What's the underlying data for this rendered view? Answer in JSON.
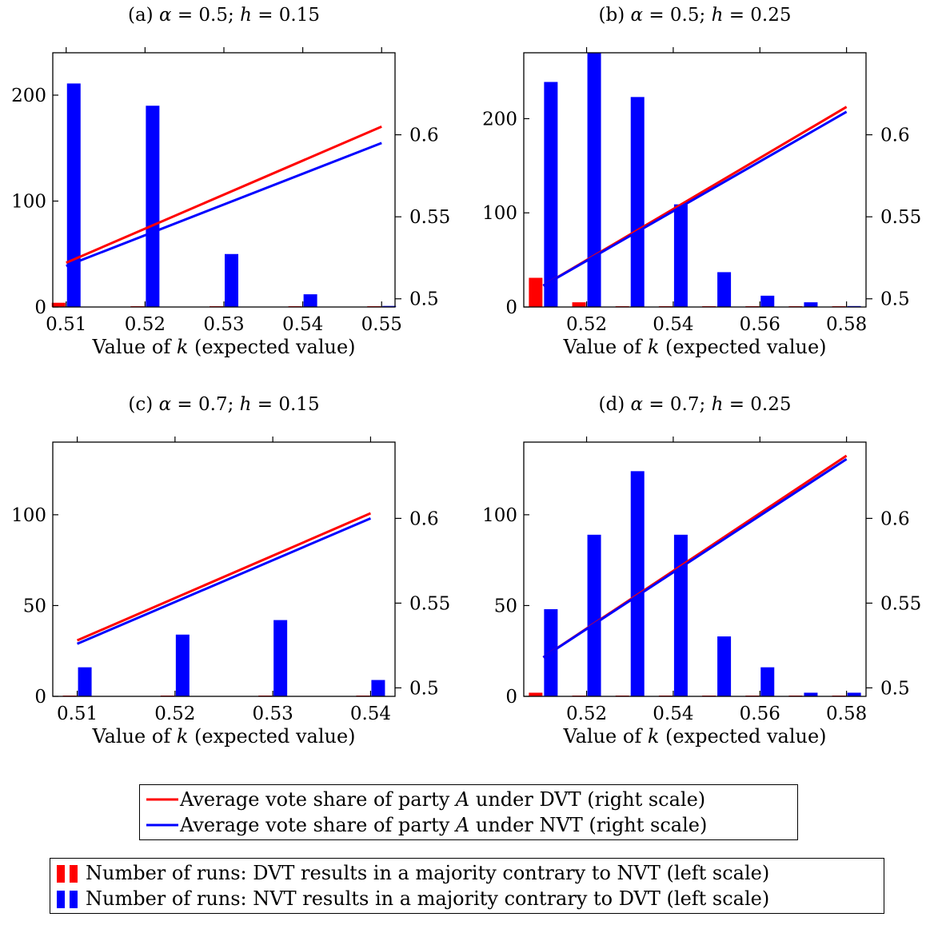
{
  "chart_data": [
    {
      "type": "bar",
      "title": "(a) α = 0.5; h = 0.15",
      "xlabel": "Value of k (expected value)",
      "x": [
        0.51,
        0.52,
        0.53,
        0.54,
        0.55
      ],
      "xticks": [
        "0.51",
        "0.52",
        "0.53",
        "0.54",
        "0.55"
      ],
      "xlim": [
        0.5083,
        0.5517
      ],
      "ylim_left": [
        0,
        240
      ],
      "yticks_left": [
        "0",
        "100",
        "200"
      ],
      "ylim_right": [
        0.495,
        0.65
      ],
      "yticks_right": [
        "0.5",
        "0.55",
        "0.6"
      ],
      "bar_series": [
        {
          "name": "DVT",
          "color": "#ff0000",
          "values": [
            4,
            0,
            0,
            0,
            0
          ]
        },
        {
          "name": "NVT",
          "color": "#0000ff",
          "values": [
            211,
            190,
            50,
            12,
            1
          ]
        }
      ],
      "line_series": [
        {
          "name": "DVT",
          "color": "#ff0000",
          "x": [
            0.51,
            0.55
          ],
          "y": [
            0.522,
            0.605
          ]
        },
        {
          "name": "NVT",
          "color": "#0000ff",
          "x": [
            0.51,
            0.55
          ],
          "y": [
            0.52,
            0.595
          ]
        }
      ]
    },
    {
      "type": "bar",
      "title": "(b) α = 0.5; h = 0.25",
      "xlabel": "Value of k (expected value)",
      "x": [
        0.51,
        0.52,
        0.53,
        0.54,
        0.55,
        0.56,
        0.57,
        0.58
      ],
      "xticks": [
        "0.52",
        "0.54",
        "0.56",
        "0.58"
      ],
      "xtick_values": [
        0.52,
        0.54,
        0.56,
        0.58
      ],
      "xlim": [
        0.5055,
        0.5845
      ],
      "ylim_left": [
        0,
        270
      ],
      "yticks_left": [
        "0",
        "100",
        "200"
      ],
      "ylim_right": [
        0.495,
        0.65
      ],
      "yticks_right": [
        "0.5",
        "0.55",
        "0.6"
      ],
      "bar_series": [
        {
          "name": "DVT",
          "color": "#ff0000",
          "values": [
            31,
            5,
            0,
            0,
            0,
            0,
            0,
            0
          ]
        },
        {
          "name": "NVT",
          "color": "#0000ff",
          "values": [
            239,
            270,
            223,
            109,
            37,
            12,
            5,
            1
          ]
        }
      ],
      "line_series": [
        {
          "name": "DVT",
          "color": "#ff0000",
          "x": [
            0.51,
            0.58
          ],
          "y": [
            0.508,
            0.617
          ]
        },
        {
          "name": "NVT",
          "color": "#0000ff",
          "x": [
            0.51,
            0.58
          ],
          "y": [
            0.508,
            0.614
          ]
        }
      ]
    },
    {
      "type": "bar",
      "title": "(c) α = 0.7; h = 0.15",
      "xlabel": "Value of k (expected value)",
      "x": [
        0.51,
        0.52,
        0.53,
        0.54
      ],
      "xticks": [
        "0.51",
        "0.52",
        "0.53",
        "0.54"
      ],
      "xlim": [
        0.5075,
        0.5425
      ],
      "ylim_left": [
        0,
        140
      ],
      "yticks_left": [
        "0",
        "50",
        "100"
      ],
      "ylim_right": [
        0.495,
        0.645
      ],
      "yticks_right": [
        "0.5",
        "0.55",
        "0.6"
      ],
      "bar_series": [
        {
          "name": "DVT",
          "color": "#ff0000",
          "values": [
            0,
            0,
            0,
            0
          ]
        },
        {
          "name": "NVT",
          "color": "#0000ff",
          "values": [
            16,
            34,
            42,
            9
          ]
        }
      ],
      "line_series": [
        {
          "name": "DVT",
          "color": "#ff0000",
          "x": [
            0.51,
            0.54
          ],
          "y": [
            0.528,
            0.603
          ]
        },
        {
          "name": "NVT",
          "color": "#0000ff",
          "x": [
            0.51,
            0.54
          ],
          "y": [
            0.526,
            0.6
          ]
        }
      ]
    },
    {
      "type": "bar",
      "title": "(d) α = 0.7; h = 0.25",
      "xlabel": "Value of k (expected value)",
      "x": [
        0.51,
        0.52,
        0.53,
        0.54,
        0.55,
        0.56,
        0.57,
        0.58
      ],
      "xticks": [
        "0.52",
        "0.54",
        "0.56",
        "0.58"
      ],
      "xtick_values": [
        0.52,
        0.54,
        0.56,
        0.58
      ],
      "xlim": [
        0.5055,
        0.5845
      ],
      "ylim_left": [
        0,
        140
      ],
      "yticks_left": [
        "0",
        "50",
        "100"
      ],
      "ylim_right": [
        0.495,
        0.645
      ],
      "yticks_right": [
        "0.5",
        "0.55",
        "0.6"
      ],
      "bar_series": [
        {
          "name": "DVT",
          "color": "#ff0000",
          "values": [
            2,
            0,
            0,
            0,
            0,
            0,
            0,
            0
          ]
        },
        {
          "name": "NVT",
          "color": "#0000ff",
          "values": [
            48,
            89,
            124,
            89,
            33,
            16,
            2,
            2
          ]
        }
      ],
      "line_series": [
        {
          "name": "DVT",
          "color": "#ff0000",
          "x": [
            0.51,
            0.58
          ],
          "y": [
            0.518,
            0.637
          ]
        },
        {
          "name": "NVT",
          "color": "#0000ff",
          "x": [
            0.51,
            0.58
          ],
          "y": [
            0.518,
            0.635
          ]
        }
      ]
    }
  ],
  "legend_lines": [
    {
      "label": "Average vote share of party A under DVT (right scale)",
      "color": "#ff0000"
    },
    {
      "label": "Average vote share of party A under NVT (right scale)",
      "color": "#0000ff"
    }
  ],
  "legend_bars": [
    {
      "label": "Number of runs: DVT results in a majority contrary to NVT (left scale)",
      "color": "#ff0000"
    },
    {
      "label": "Number of runs: NVT results in a majority contrary to DVT (left scale)",
      "color": "#0000ff"
    }
  ]
}
